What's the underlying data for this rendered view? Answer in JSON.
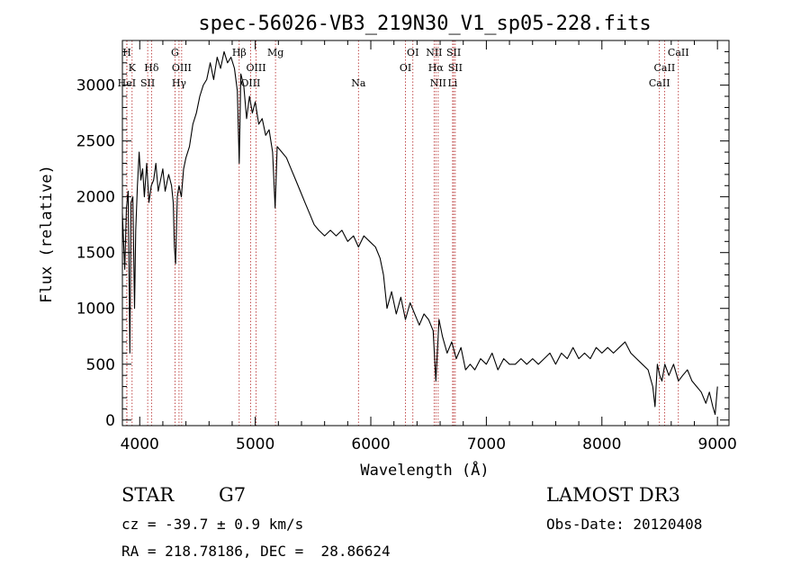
{
  "chart_data": {
    "type": "line",
    "title": "spec-56026-VB3_219N30_V1_sp05-228.fits",
    "xlabel": "Wavelength (Å)",
    "ylabel": "Flux (relative)",
    "xlim": [
      3850,
      9100
    ],
    "ylim": [
      -50,
      3400
    ],
    "x_ticks": [
      4000,
      5000,
      6000,
      7000,
      8000,
      9000
    ],
    "y_ticks": [
      0,
      500,
      1000,
      1500,
      2000,
      2500,
      3000
    ],
    "series": [
      {
        "name": "flux",
        "points": [
          [
            3850,
            1850
          ],
          [
            3870,
            1350
          ],
          [
            3885,
            1900
          ],
          [
            3900,
            2050
          ],
          [
            3915,
            600
          ],
          [
            3925,
            1950
          ],
          [
            3940,
            2000
          ],
          [
            3955,
            1000
          ],
          [
            3965,
            1700
          ],
          [
            3980,
            2100
          ],
          [
            3995,
            2400
          ],
          [
            4010,
            2150
          ],
          [
            4025,
            2250
          ],
          [
            4040,
            2000
          ],
          [
            4060,
            2300
          ],
          [
            4080,
            1950
          ],
          [
            4100,
            2100
          ],
          [
            4120,
            2150
          ],
          [
            4140,
            2300
          ],
          [
            4160,
            2050
          ],
          [
            4180,
            2150
          ],
          [
            4200,
            2250
          ],
          [
            4220,
            2050
          ],
          [
            4250,
            2200
          ],
          [
            4275,
            2100
          ],
          [
            4290,
            1950
          ],
          [
            4300,
            1550
          ],
          [
            4310,
            1400
          ],
          [
            4325,
            2000
          ],
          [
            4340,
            2100
          ],
          [
            4360,
            2000
          ],
          [
            4380,
            2250
          ],
          [
            4400,
            2350
          ],
          [
            4430,
            2450
          ],
          [
            4460,
            2650
          ],
          [
            4490,
            2750
          ],
          [
            4520,
            2900
          ],
          [
            4550,
            3000
          ],
          [
            4580,
            3050
          ],
          [
            4610,
            3200
          ],
          [
            4640,
            3050
          ],
          [
            4670,
            3250
          ],
          [
            4700,
            3150
          ],
          [
            4730,
            3300
          ],
          [
            4760,
            3200
          ],
          [
            4790,
            3250
          ],
          [
            4820,
            3150
          ],
          [
            4845,
            2950
          ],
          [
            4861,
            2300
          ],
          [
            4875,
            3100
          ],
          [
            4900,
            3000
          ],
          [
            4925,
            2700
          ],
          [
            4950,
            2900
          ],
          [
            4975,
            2750
          ],
          [
            5000,
            2850
          ],
          [
            5030,
            2650
          ],
          [
            5060,
            2700
          ],
          [
            5090,
            2550
          ],
          [
            5120,
            2600
          ],
          [
            5150,
            2400
          ],
          [
            5172,
            1900
          ],
          [
            5190,
            2450
          ],
          [
            5230,
            2400
          ],
          [
            5270,
            2350
          ],
          [
            5310,
            2250
          ],
          [
            5350,
            2150
          ],
          [
            5390,
            2050
          ],
          [
            5430,
            1950
          ],
          [
            5470,
            1850
          ],
          [
            5510,
            1750
          ],
          [
            5550,
            1700
          ],
          [
            5600,
            1650
          ],
          [
            5650,
            1700
          ],
          [
            5700,
            1650
          ],
          [
            5750,
            1700
          ],
          [
            5800,
            1600
          ],
          [
            5850,
            1650
          ],
          [
            5893,
            1550
          ],
          [
            5940,
            1650
          ],
          [
            5990,
            1600
          ],
          [
            6040,
            1550
          ],
          [
            6080,
            1450
          ],
          [
            6110,
            1300
          ],
          [
            6140,
            1000
          ],
          [
            6180,
            1150
          ],
          [
            6220,
            950
          ],
          [
            6260,
            1100
          ],
          [
            6300,
            900
          ],
          [
            6340,
            1050
          ],
          [
            6380,
            950
          ],
          [
            6420,
            850
          ],
          [
            6460,
            950
          ],
          [
            6500,
            900
          ],
          [
            6540,
            800
          ],
          [
            6563,
            350
          ],
          [
            6590,
            900
          ],
          [
            6620,
            750
          ],
          [
            6660,
            600
          ],
          [
            6700,
            700
          ],
          [
            6740,
            550
          ],
          [
            6780,
            650
          ],
          [
            6820,
            450
          ],
          [
            6860,
            500
          ],
          [
            6900,
            450
          ],
          [
            6950,
            550
          ],
          [
            7000,
            500
          ],
          [
            7050,
            600
          ],
          [
            7100,
            450
          ],
          [
            7150,
            550
          ],
          [
            7200,
            500
          ],
          [
            7250,
            500
          ],
          [
            7300,
            550
          ],
          [
            7350,
            500
          ],
          [
            7400,
            550
          ],
          [
            7450,
            500
          ],
          [
            7500,
            550
          ],
          [
            7550,
            600
          ],
          [
            7600,
            500
          ],
          [
            7650,
            600
          ],
          [
            7700,
            550
          ],
          [
            7750,
            650
          ],
          [
            7800,
            550
          ],
          [
            7850,
            600
          ],
          [
            7900,
            550
          ],
          [
            7950,
            650
          ],
          [
            8000,
            600
          ],
          [
            8050,
            650
          ],
          [
            8100,
            600
          ],
          [
            8150,
            650
          ],
          [
            8200,
            700
          ],
          [
            8250,
            600
          ],
          [
            8300,
            550
          ],
          [
            8350,
            500
          ],
          [
            8400,
            450
          ],
          [
            8440,
            300
          ],
          [
            8460,
            120
          ],
          [
            8480,
            500
          ],
          [
            8500,
            400
          ],
          [
            8520,
            350
          ],
          [
            8545,
            500
          ],
          [
            8580,
            400
          ],
          [
            8620,
            500
          ],
          [
            8662,
            350
          ],
          [
            8700,
            400
          ],
          [
            8740,
            450
          ],
          [
            8780,
            350
          ],
          [
            8820,
            300
          ],
          [
            8860,
            250
          ],
          [
            8900,
            150
          ],
          [
            8930,
            250
          ],
          [
            8960,
            120
          ],
          [
            8980,
            50
          ],
          [
            9000,
            300
          ]
        ]
      }
    ],
    "lines": [
      {
        "name": "H",
        "x": 3889,
        "row": 0
      },
      {
        "name": "K",
        "x": 3934,
        "row": 1
      },
      {
        "name": "HeI",
        "x": 3888,
        "row": 2
      },
      {
        "name": "SII",
        "x": 4069,
        "row": 2
      },
      {
        "name": "Hδ",
        "x": 4102,
        "row": 1
      },
      {
        "name": "G",
        "x": 4305,
        "row": 0
      },
      {
        "name": "OIII",
        "x": 4363,
        "row": 1
      },
      {
        "name": "Hγ",
        "x": 4340,
        "row": 2
      },
      {
        "name": "Hβ",
        "x": 4861,
        "row": 0
      },
      {
        "name": "OIII",
        "x": 5007,
        "row": 1
      },
      {
        "name": "OIII",
        "x": 4959,
        "row": 2
      },
      {
        "name": "Mg",
        "x": 5175,
        "row": 0
      },
      {
        "name": "Na",
        "x": 5893,
        "row": 2
      },
      {
        "name": "OI",
        "x": 6364,
        "row": 0
      },
      {
        "name": "OI",
        "x": 6300,
        "row": 1
      },
      {
        "name": "NII",
        "x": 6548,
        "row": 0
      },
      {
        "name": "SII",
        "x": 6717,
        "row": 0
      },
      {
        "name": "Hα",
        "x": 6563,
        "row": 1
      },
      {
        "name": "SII",
        "x": 6731,
        "row": 1
      },
      {
        "name": "NII",
        "x": 6583,
        "row": 2
      },
      {
        "name": "Li",
        "x": 6708,
        "row": 2
      },
      {
        "name": "CaII",
        "x": 8662,
        "row": 0
      },
      {
        "name": "CaII",
        "x": 8542,
        "row": 1
      },
      {
        "name": "CaII",
        "x": 8498,
        "row": 2
      }
    ]
  },
  "info": {
    "object_class": "STAR",
    "subclass": "G7",
    "survey": "LAMOST DR3",
    "redshift": "cz = -39.7 ± 0.9 km/s",
    "obs_date": "Obs-Date: 20120408",
    "coords": "RA = 218.78186, DEC =  28.86624"
  }
}
